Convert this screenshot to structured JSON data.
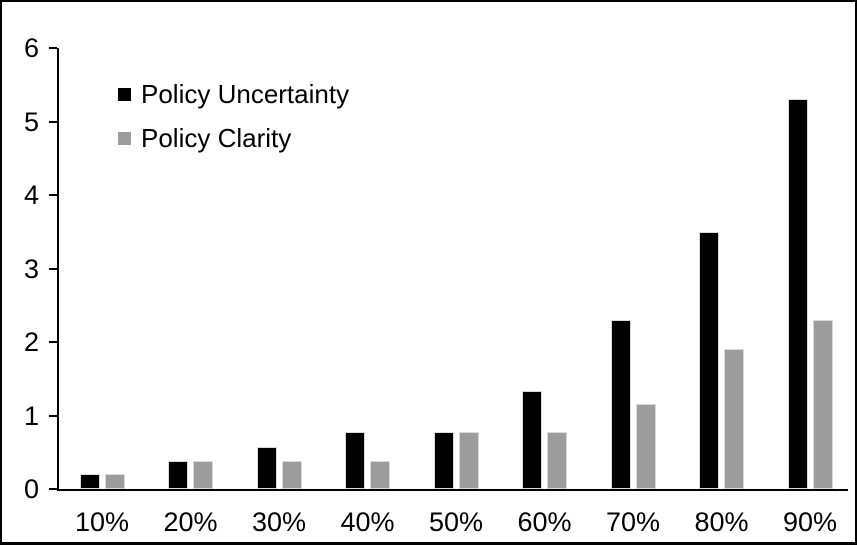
{
  "chart_data": {
    "type": "bar",
    "title": "",
    "xlabel": "",
    "ylabel": "",
    "categories": [
      "10%",
      "20%",
      "30%",
      "40%",
      "50%",
      "60%",
      "70%",
      "80%",
      "90%"
    ],
    "series": [
      {
        "name": "Policy Uncertainty",
        "color": "#000000",
        "values": [
          0.2,
          0.38,
          0.57,
          0.77,
          0.78,
          1.33,
          2.3,
          3.5,
          5.3
        ]
      },
      {
        "name": "Policy Clarity",
        "color": "#9c9c9c",
        "values": [
          0.2,
          0.38,
          0.38,
          0.38,
          0.77,
          0.77,
          1.15,
          1.9,
          2.3
        ]
      }
    ],
    "ylim": [
      0,
      6
    ],
    "y_ticks": [
      0,
      1,
      2,
      3,
      4,
      5,
      6
    ],
    "grid": false,
    "legend_position": "top-left",
    "axis_color": "#000000",
    "background_color": "#ffffff"
  }
}
